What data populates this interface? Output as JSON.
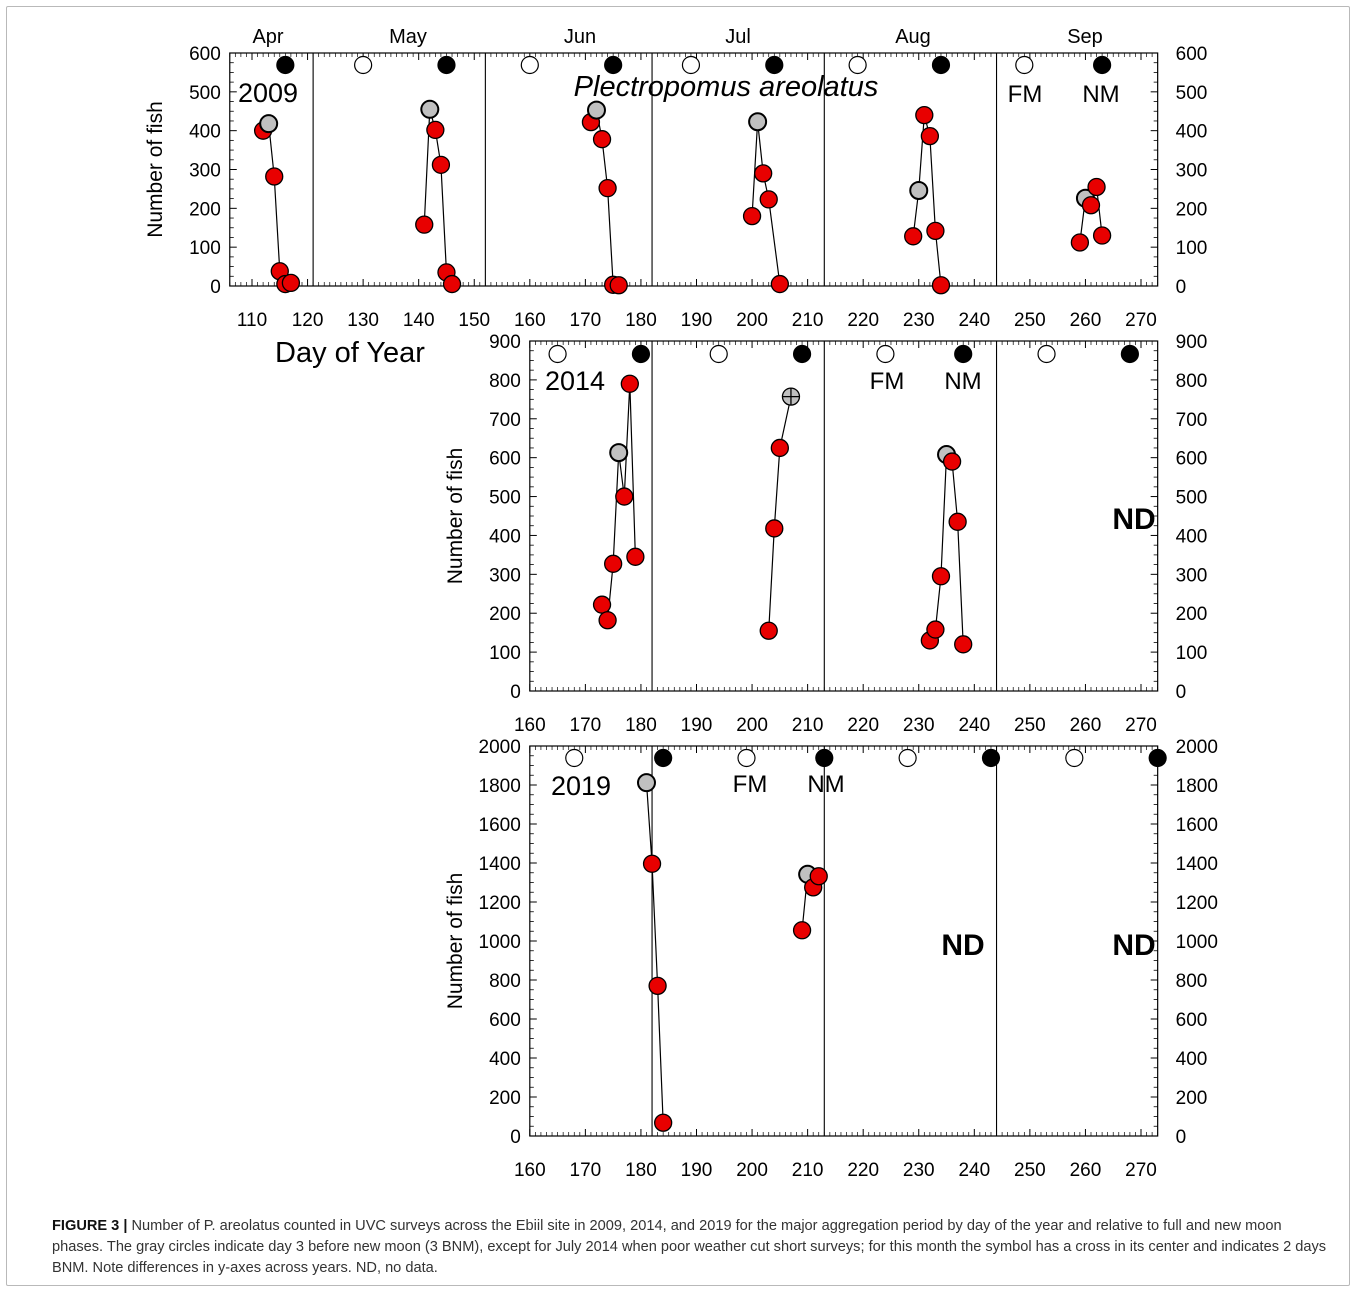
{
  "chart_data": {
    "type": "scatter",
    "title": "Plectropomus areolatus",
    "ylabel": "Number of fish",
    "xlabel": "Day of Year",
    "moon_labels": {
      "full": "FM",
      "new": "NM"
    },
    "no_data_label": "ND",
    "x_ticks": [
      110,
      120,
      130,
      140,
      150,
      160,
      170,
      180,
      190,
      200,
      210,
      220,
      230,
      240,
      250,
      260,
      270
    ],
    "panels": [
      {
        "year": "2009",
        "xlim": [
          106,
          273
        ],
        "ylim": [
          0,
          600
        ],
        "y_ticks": [
          0,
          100,
          200,
          300,
          400,
          500,
          600
        ],
        "month_names": [
          "Apr",
          "May",
          "Jun",
          "Jul",
          "Aug",
          "Sep"
        ],
        "month_boundaries": [
          121,
          152,
          182,
          213,
          244
        ],
        "full_moons": [
          130,
          160,
          189,
          219,
          249
        ],
        "new_moons": [
          116,
          145,
          175,
          204,
          234,
          263
        ],
        "moon_label_position": "Sep",
        "segments": [
          {
            "x": [
              112,
              113,
              114,
              115,
              116,
              117
            ],
            "y": [
              400,
              418,
              282,
              38,
              5,
              8
            ],
            "gray_index": 1
          },
          {
            "x": [
              141,
              142,
              143,
              144,
              145,
              146
            ],
            "y": [
              158,
              455,
              402,
              312,
              35,
              5
            ],
            "gray_index": 1
          },
          {
            "x": [
              171,
              172,
              173,
              174,
              175,
              176
            ],
            "y": [
              422,
              453,
              378,
              252,
              3,
              2
            ],
            "gray_index": 1
          },
          {
            "x": [
              200,
              201,
              202,
              203,
              205
            ],
            "y": [
              180,
              423,
              290,
              223,
              5
            ],
            "gray_index": 1
          },
          {
            "x": [
              229,
              230,
              231,
              232,
              233,
              234
            ],
            "y": [
              128,
              246,
              440,
              386,
              142,
              2
            ],
            "gray_index": 1
          },
          {
            "x": [
              259,
              260,
              261,
              262,
              263
            ],
            "y": [
              112,
              226,
              208,
              255,
              130
            ],
            "gray_index": 1
          }
        ],
        "no_data": []
      },
      {
        "year": "2014",
        "xlim": [
          160,
          273
        ],
        "ylim": [
          0,
          900
        ],
        "y_ticks": [
          0,
          100,
          200,
          300,
          400,
          500,
          600,
          700,
          800,
          900
        ],
        "month_names": [],
        "month_boundaries": [
          182,
          213,
          244
        ],
        "full_moons": [
          165,
          194,
          224,
          253
        ],
        "new_moons": [
          180,
          209,
          238,
          268
        ],
        "moon_label_position": "Aug",
        "segments": [
          {
            "x": [
              173,
              174,
              175,
              176,
              177,
              178,
              179
            ],
            "y": [
              222,
              182,
              327,
              613,
              500,
              790,
              345
            ],
            "gray_index": 3
          },
          {
            "x": [
              203,
              204,
              205,
              207
            ],
            "y": [
              155,
              418,
              625,
              757
            ],
            "cross_index": 3
          },
          {
            "x": [
              232,
              233,
              234,
              235,
              236,
              237,
              238
            ],
            "y": [
              130,
              158,
              295,
              608,
              590,
              435,
              120
            ],
            "gray_index": 3
          }
        ],
        "no_data": [
          "Sep"
        ]
      },
      {
        "year": "2019",
        "xlim": [
          160,
          273
        ],
        "ylim": [
          0,
          2000
        ],
        "y_ticks": [
          0,
          200,
          400,
          600,
          800,
          1000,
          1200,
          1400,
          1600,
          1800,
          2000
        ],
        "month_names": [],
        "month_boundaries": [
          182,
          213,
          244
        ],
        "full_moons": [
          168,
          199,
          228,
          258
        ],
        "new_moons": [
          184,
          213,
          243,
          273
        ],
        "moon_label_position": "Jul",
        "segments": [
          {
            "x": [
              181,
              182,
              183,
              184
            ],
            "y": [
              1812,
              1396,
              770,
              68
            ],
            "gray_index": 0
          },
          {
            "x": [
              209,
              210,
              211,
              212
            ],
            "y": [
              1055,
              1342,
              1275,
              1332
            ],
            "gray_index": 1
          }
        ],
        "no_data": [
          "Aug",
          "Sep"
        ]
      }
    ]
  },
  "caption": {
    "label": "FIGURE 3 |",
    "text": "Number of P. areolatus counted in UVC surveys across the Ebiil site in 2009, 2014, and 2019 for the major aggregation period by day of the year and relative to full and new moon phases. The gray circles indicate day 3 before new moon (3 BNM), except for July 2014 when poor weather cut short surveys; for this month the symbol has a cross in its center and indicates 2 days BNM. Note differences in y-axes across years. ND, no data."
  },
  "colors": {
    "red_point": "#e80000",
    "gray_point": "#c0c0c0",
    "new_moon": "#000000",
    "full_moon": "#ffffff",
    "caption_text": "#333333"
  }
}
